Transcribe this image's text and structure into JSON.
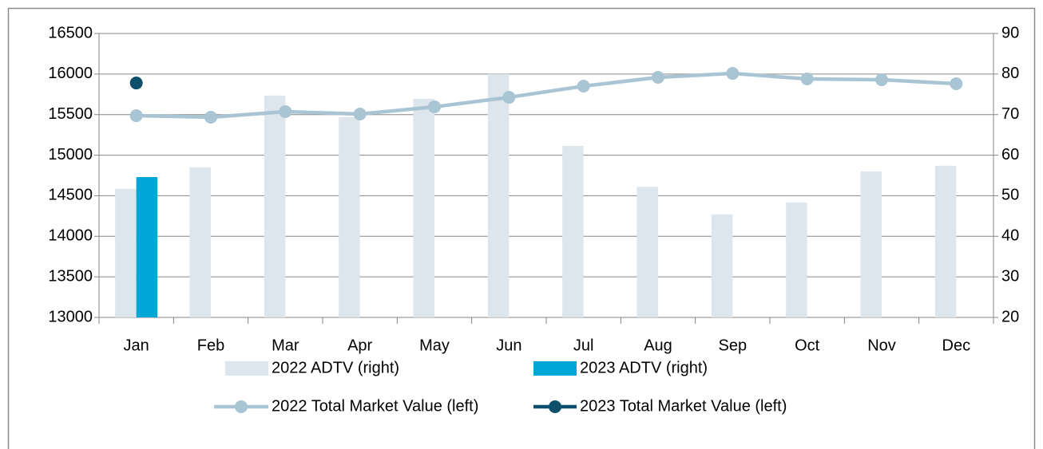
{
  "chart_data": {
    "type": "bar",
    "categories": [
      "Jan",
      "Feb",
      "Mar",
      "Apr",
      "May",
      "Jun",
      "Jul",
      "Aug",
      "Sep",
      "Oct",
      "Nov",
      "Dec"
    ],
    "series": [
      {
        "name": "2022 ADTV (right)",
        "type": "bar",
        "axis": "y2",
        "color": "#dce6ec",
        "values": [
          51.7,
          57,
          74.7,
          69.4,
          73.9,
          80,
          62.3,
          52.2,
          45.4,
          48.3,
          56,
          57.4
        ]
      },
      {
        "name": "2023 ADTV (right)",
        "type": "bar",
        "axis": "y2",
        "color": "#00a6d6",
        "values": [
          54.6,
          null,
          null,
          null,
          null,
          null,
          null,
          null,
          null,
          null,
          null,
          null
        ]
      },
      {
        "name": "2022 Total Market Value (left)",
        "type": "line",
        "color": "#a9c4d2",
        "values": [
          15487,
          15468,
          15537,
          15507,
          15596,
          15713,
          15851,
          15959,
          16008,
          15940,
          15930,
          15881
        ]
      },
      {
        "name": "2023 Total Market Value (left)",
        "type": "line",
        "color": "#0e4f6b",
        "values": [
          15890,
          null,
          null,
          null,
          null,
          null,
          null,
          null,
          null,
          null,
          null,
          null
        ]
      }
    ],
    "ylim": [
      13000,
      16500
    ],
    "yticks": [
      13000,
      13500,
      14000,
      14500,
      15000,
      15500,
      16000,
      16500
    ],
    "y2lim": [
      20,
      90
    ],
    "y2ticks": [
      20,
      30,
      40,
      50,
      60,
      70,
      80,
      90
    ],
    "grid": true
  }
}
